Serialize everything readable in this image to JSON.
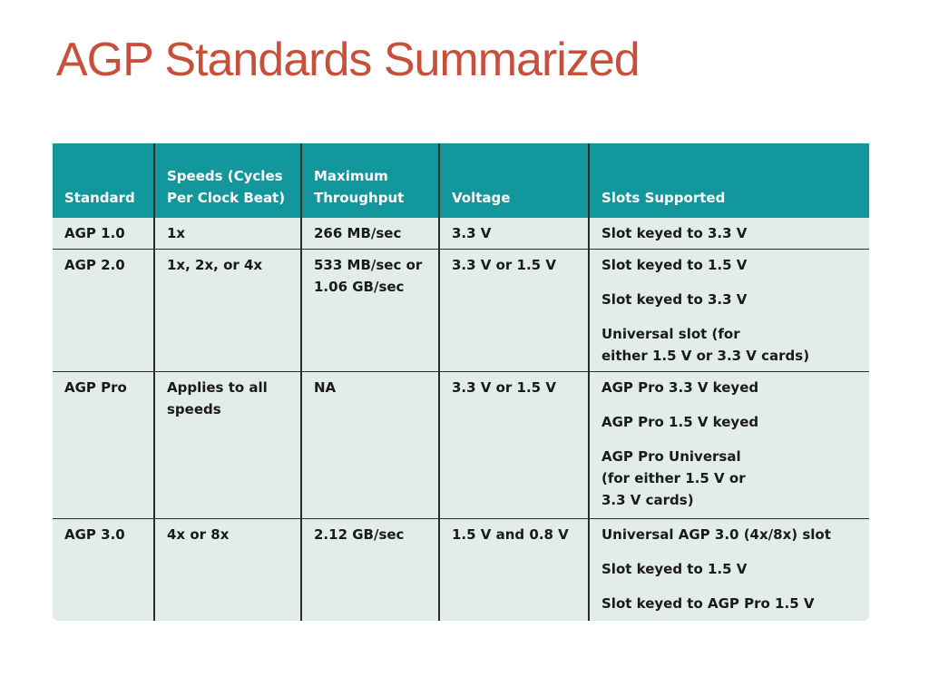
{
  "slide": {
    "title": "AGP Standards Summarized"
  },
  "table": {
    "headers": [
      "Standard",
      "Speeds (Cycles\nPer Clock Beat)",
      "Maximum\nThroughput",
      "Voltage",
      "Slots Supported"
    ],
    "rows": [
      {
        "standard": "AGP 1.0",
        "speeds": "1x",
        "throughput": "266 MB/sec",
        "voltage": "3.3 V",
        "slots": [
          "Slot keyed to 3.3 V"
        ]
      },
      {
        "standard": "AGP 2.0",
        "speeds": "1x, 2x, or 4x",
        "throughput": "533 MB/sec or\n1.06 GB/sec",
        "voltage": "3.3 V or 1.5 V",
        "slots": [
          "Slot keyed to 1.5 V",
          "Slot keyed to 3.3 V",
          "Universal slot (for\neither 1.5 V or 3.3 V cards)"
        ]
      },
      {
        "standard": "AGP Pro",
        "speeds": "Applies to all\nspeeds",
        "throughput": "NA",
        "voltage": "3.3 V or 1.5 V",
        "slots": [
          "AGP Pro 3.3 V keyed",
          "AGP Pro 1.5 V keyed",
          "AGP Pro Universal\n(for either 1.5 V or\n3.3 V cards)"
        ]
      },
      {
        "standard": "AGP 3.0",
        "speeds": "4x or 8x",
        "throughput": "2.12 GB/sec",
        "voltage": "1.5 V and 0.8 V",
        "slots": [
          "Universal AGP 3.0 (4x/8x) slot",
          "Slot keyed to 1.5 V",
          "Slot keyed to AGP Pro 1.5 V"
        ]
      }
    ]
  },
  "colors": {
    "title": "#c8503a",
    "header_bg": "#12979c",
    "body_bg": "#e2ecea",
    "rules": "#2b2b2b"
  }
}
